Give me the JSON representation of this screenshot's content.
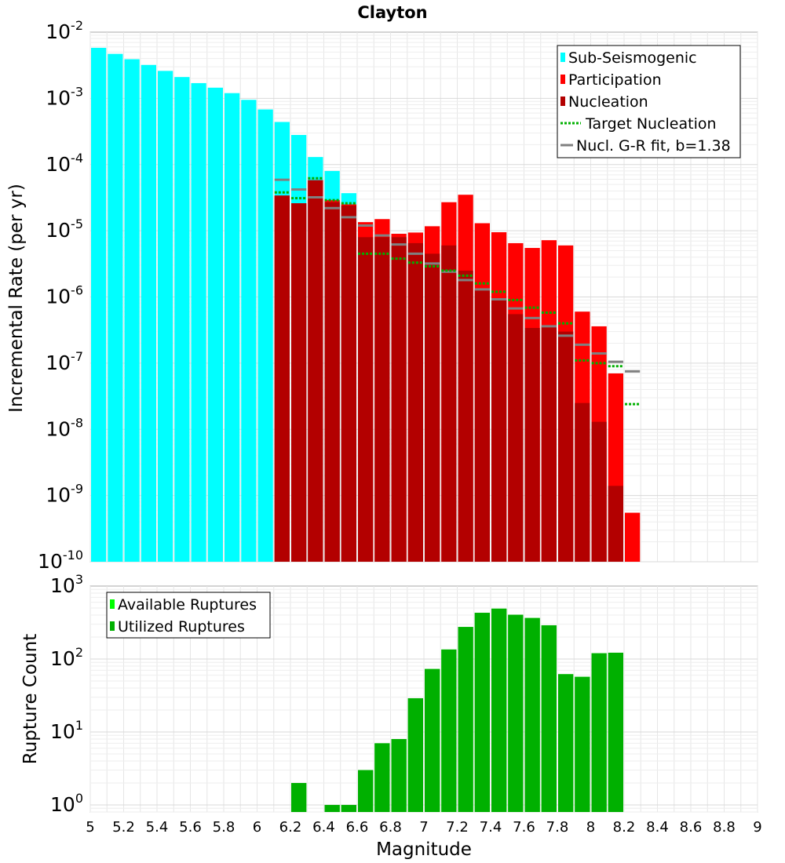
{
  "chart_data": [
    {
      "type": "bar",
      "title": "Clayton",
      "xlabel": "",
      "ylabel": "Incremental Rate (per yr)",
      "xlim": [
        5,
        9
      ],
      "ylim": [
        1e-10,
        0.01
      ],
      "yscale": "log",
      "grid": true,
      "legend_position": "top-right",
      "x_ticks": [
        "5",
        "5.2",
        "5.4",
        "5.6",
        "5.8",
        "6",
        "6.2",
        "6.4",
        "6.6",
        "6.8",
        "7",
        "7.2",
        "7.4",
        "7.6",
        "7.8",
        "8",
        "8.2",
        "8.4",
        "8.6",
        "8.8",
        "9"
      ],
      "y_ticks": [
        {
          "base": "10",
          "exp": "-2"
        },
        {
          "base": "10",
          "exp": "-3"
        },
        {
          "base": "10",
          "exp": "-4"
        },
        {
          "base": "10",
          "exp": "-5"
        },
        {
          "base": "10",
          "exp": "-6"
        },
        {
          "base": "10",
          "exp": "-7"
        },
        {
          "base": "10",
          "exp": "-8"
        },
        {
          "base": "10",
          "exp": "-9"
        },
        {
          "base": "10",
          "exp": "-10"
        }
      ],
      "series": [
        {
          "name": "Sub-Seismogenic",
          "style": "bar",
          "color": "#00ffff",
          "x": [
            5.05,
            5.15,
            5.25,
            5.35,
            5.45,
            5.55,
            5.65,
            5.75,
            5.85,
            5.95,
            6.05,
            6.15,
            6.25,
            6.35,
            6.45,
            6.55
          ],
          "values": [
            0.0058,
            0.0047,
            0.0039,
            0.0032,
            0.0026,
            0.0021,
            0.0017,
            0.00145,
            0.0012,
            0.00095,
            0.00068,
            0.00044,
            0.00028,
            0.00013,
            8e-05,
            3.7e-05
          ]
        },
        {
          "name": "Participation",
          "style": "bar",
          "color": "#ff0000",
          "x": [
            6.15,
            6.25,
            6.35,
            6.45,
            6.55,
            6.65,
            6.75,
            6.85,
            6.95,
            7.05,
            7.15,
            7.25,
            7.35,
            7.45,
            7.55,
            7.65,
            7.75,
            7.85,
            7.95,
            8.05,
            8.15,
            8.25
          ],
          "values": [
            3.4e-05,
            2.6e-05,
            5.8e-05,
            2.9e-05,
            2.5e-05,
            1.35e-05,
            1.5e-05,
            9e-06,
            9.4e-06,
            1.17e-05,
            2.7e-05,
            3.5e-05,
            1.3e-05,
            9.5e-06,
            6.5e-06,
            5.5e-06,
            7.2e-06,
            6e-06,
            6e-07,
            3.6e-07,
            7e-08,
            5.5e-10
          ]
        },
        {
          "name": "Nucleation",
          "style": "bar",
          "color": "#b30000",
          "x": [
            6.15,
            6.25,
            6.35,
            6.45,
            6.55,
            6.65,
            6.75,
            6.85,
            6.95,
            7.05,
            7.15,
            7.25,
            7.35,
            7.45,
            7.55,
            7.65,
            7.75,
            7.85,
            7.95,
            8.05,
            8.15
          ],
          "values": [
            3.4e-05,
            2.6e-05,
            5.8e-05,
            2.7e-05,
            2.4e-05,
            8e-06,
            8e-06,
            8e-06,
            6.5e-06,
            4.5e-06,
            6e-06,
            2.5e-06,
            1.3e-06,
            9e-07,
            5.5e-07,
            3.4e-07,
            3.6e-07,
            3e-07,
            2.5e-08,
            1.3e-08,
            1.4e-09
          ]
        },
        {
          "name": "Target Nucleation",
          "style": "dotted-step",
          "color": "#00b000",
          "x": [
            6.15,
            6.25,
            6.35,
            6.45,
            6.55,
            6.65,
            6.75,
            6.85,
            6.95,
            7.05,
            7.15,
            7.25,
            7.35,
            7.45,
            7.55,
            7.65,
            7.75,
            7.85,
            7.95,
            8.05,
            8.15,
            8.25
          ],
          "values": [
            3.8e-05,
            3.1e-05,
            6.2e-05,
            2.9e-05,
            2.6e-05,
            4.5e-06,
            4.5e-06,
            3.8e-06,
            3.3e-06,
            2.9e-06,
            2.5e-06,
            2.1e-06,
            1.6e-06,
            1.2e-06,
            9e-07,
            6.9e-07,
            5.8e-07,
            4e-07,
            1.1e-07,
            1e-07,
            9e-08,
            2.4e-08
          ]
        },
        {
          "name": "Nucl. G-R fit, b=1.38",
          "style": "solid-step",
          "color": "#808080",
          "x": [
            6.15,
            6.25,
            6.35,
            6.45,
            6.55,
            6.65,
            6.75,
            6.85,
            6.95,
            7.05,
            7.15,
            7.25,
            7.35,
            7.45,
            7.55,
            7.65,
            7.75,
            7.85,
            7.95,
            8.05,
            8.15,
            8.25
          ],
          "values": [
            5.9e-05,
            4.2e-05,
            3.2e-05,
            2.2e-05,
            1.6e-05,
            1.2e-05,
            8.5e-06,
            6.2e-06,
            4.5e-06,
            3.2e-06,
            2.4e-06,
            1.8e-06,
            1.3e-06,
            9.2e-07,
            6.7e-07,
            4.8e-07,
            3.6e-07,
            2.6e-07,
            1.9e-07,
            1.4e-07,
            1.05e-07,
            7.5e-08
          ]
        }
      ]
    },
    {
      "type": "bar",
      "title": "",
      "xlabel": "Magnitude",
      "ylabel": "Rupture Count",
      "xlim": [
        5,
        9
      ],
      "ylim": [
        0.8,
        1000
      ],
      "yscale": "log",
      "grid": true,
      "legend_position": "top-left",
      "x_ticks": [
        "5",
        "5.2",
        "5.4",
        "5.6",
        "5.8",
        "6",
        "6.2",
        "6.4",
        "6.6",
        "6.8",
        "7",
        "7.2",
        "7.4",
        "7.6",
        "7.8",
        "8",
        "8.2",
        "8.4",
        "8.6",
        "8.8",
        "9"
      ],
      "y_ticks": [
        {
          "base": "10",
          "exp": "3"
        },
        {
          "base": "10",
          "exp": "2"
        },
        {
          "base": "10",
          "exp": "1"
        },
        {
          "base": "10",
          "exp": "0"
        }
      ],
      "series": [
        {
          "name": "Available Ruptures",
          "style": "bar",
          "color": "#00ff00",
          "x": [
            6.25,
            6.45,
            6.55,
            6.65,
            6.75,
            6.85,
            6.95,
            7.05,
            7.15,
            7.25,
            7.35,
            7.45,
            7.55,
            7.65,
            7.75,
            7.85,
            7.95,
            8.05,
            8.15
          ],
          "values": [
            2,
            1,
            1,
            3,
            7,
            8,
            29,
            73,
            135,
            275,
            430,
            490,
            405,
            365,
            290,
            62,
            57,
            120,
            122
          ]
        },
        {
          "name": "Utilized Ruptures",
          "style": "bar",
          "color": "#00b000",
          "x": [
            6.25,
            6.45,
            6.55,
            6.65,
            6.75,
            6.85,
            6.95,
            7.05,
            7.15,
            7.25,
            7.35,
            7.45,
            7.55,
            7.65,
            7.75,
            7.85,
            7.95,
            8.05,
            8.15
          ],
          "values": [
            2,
            1,
            1,
            3,
            7,
            8,
            29,
            73,
            135,
            275,
            430,
            490,
            405,
            365,
            290,
            62,
            57,
            120,
            122
          ]
        }
      ]
    }
  ]
}
